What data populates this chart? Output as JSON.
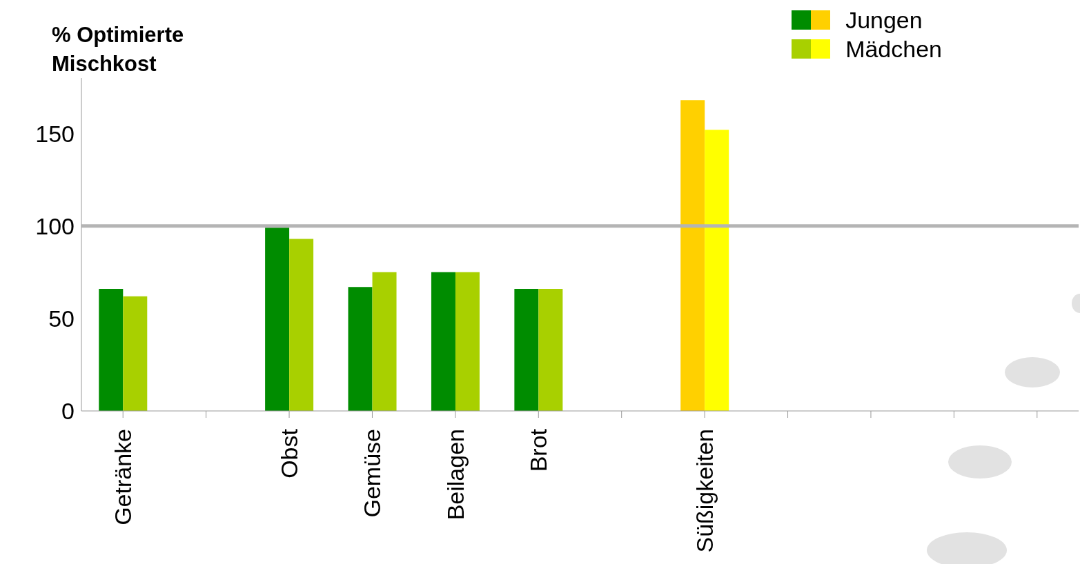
{
  "chart_data": {
    "type": "bar",
    "ylabel": "% Optimierte Mischkost",
    "categories": [
      "Getränke",
      null,
      "Obst",
      "Gemüse",
      "Beilagen",
      "Brot",
      null,
      "Süßigkeiten",
      null,
      null,
      null,
      null
    ],
    "series": [
      {
        "name": "Jungen",
        "color": "#008c00",
        "colors": [
          "#008c00",
          "#008c00",
          "#008c00",
          "#008c00",
          "#008c00",
          "#008c00",
          "#008c00",
          "#ffd000",
          "#008c00",
          "#008c00",
          "#008c00",
          "#008c00"
        ],
        "values": [
          66,
          null,
          99,
          67,
          75,
          66,
          null,
          168,
          null,
          null,
          null,
          null
        ]
      },
      {
        "name": "Mädchen",
        "color": "#a8d000",
        "colors": [
          "#a8d000",
          "#a8d000",
          "#a8d000",
          "#a8d000",
          "#a8d000",
          "#a8d000",
          "#a8d000",
          "#ffff00",
          "#a8d000",
          "#a8d000",
          "#a8d000",
          "#a8d000"
        ],
        "values": [
          62,
          null,
          93,
          75,
          75,
          66,
          null,
          152,
          null,
          null,
          null,
          null
        ]
      }
    ],
    "ylim": [
      0,
      180
    ],
    "yticks": [
      0,
      50,
      100,
      150
    ],
    "grid": false,
    "legend": "top right",
    "ref_lines": [
      {
        "axis": "y",
        "value": 100,
        "color": "#b4b4b4"
      }
    ]
  }
}
